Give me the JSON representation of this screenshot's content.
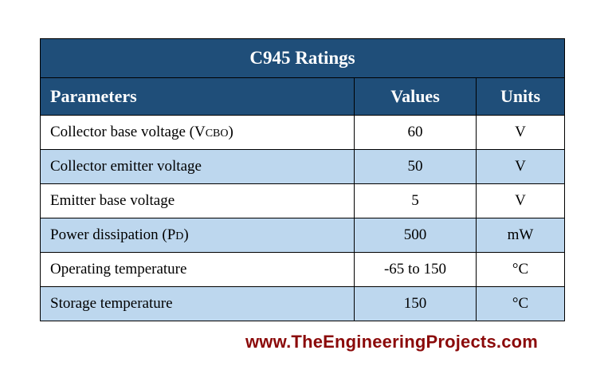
{
  "table": {
    "title": "C945 Ratings",
    "headers": {
      "parameters": "Parameters",
      "values": "Values",
      "units": "Units"
    },
    "rows": [
      {
        "parameter": "Collector base voltage (V",
        "parameter_sub": "CBO",
        "parameter_suffix": ")",
        "value": "60",
        "unit": "V"
      },
      {
        "parameter": "Collector emitter voltage",
        "parameter_sub": "",
        "parameter_suffix": "",
        "value": "50",
        "unit": "V"
      },
      {
        "parameter": "Emitter base voltage",
        "parameter_sub": "",
        "parameter_suffix": "",
        "value": "5",
        "unit": "V"
      },
      {
        "parameter": "Power dissipation (P",
        "parameter_sub": "D",
        "parameter_suffix": ")",
        "value": "500",
        "unit": "mW"
      },
      {
        "parameter": "Operating temperature",
        "parameter_sub": "",
        "parameter_suffix": "",
        "value": "-65 to 150",
        "unit": "°C"
      },
      {
        "parameter": "Storage temperature",
        "parameter_sub": "",
        "parameter_suffix": "",
        "value": "150",
        "unit": "°C"
      }
    ],
    "colors": {
      "header_bg": "#1f4e79",
      "header_text": "#ffffff",
      "stripe_bg": "#bdd7ee",
      "border": "#000000"
    }
  },
  "footer": {
    "watermark": "www.TheEngineeringProjects.com",
    "color": "#8b0a0a"
  }
}
